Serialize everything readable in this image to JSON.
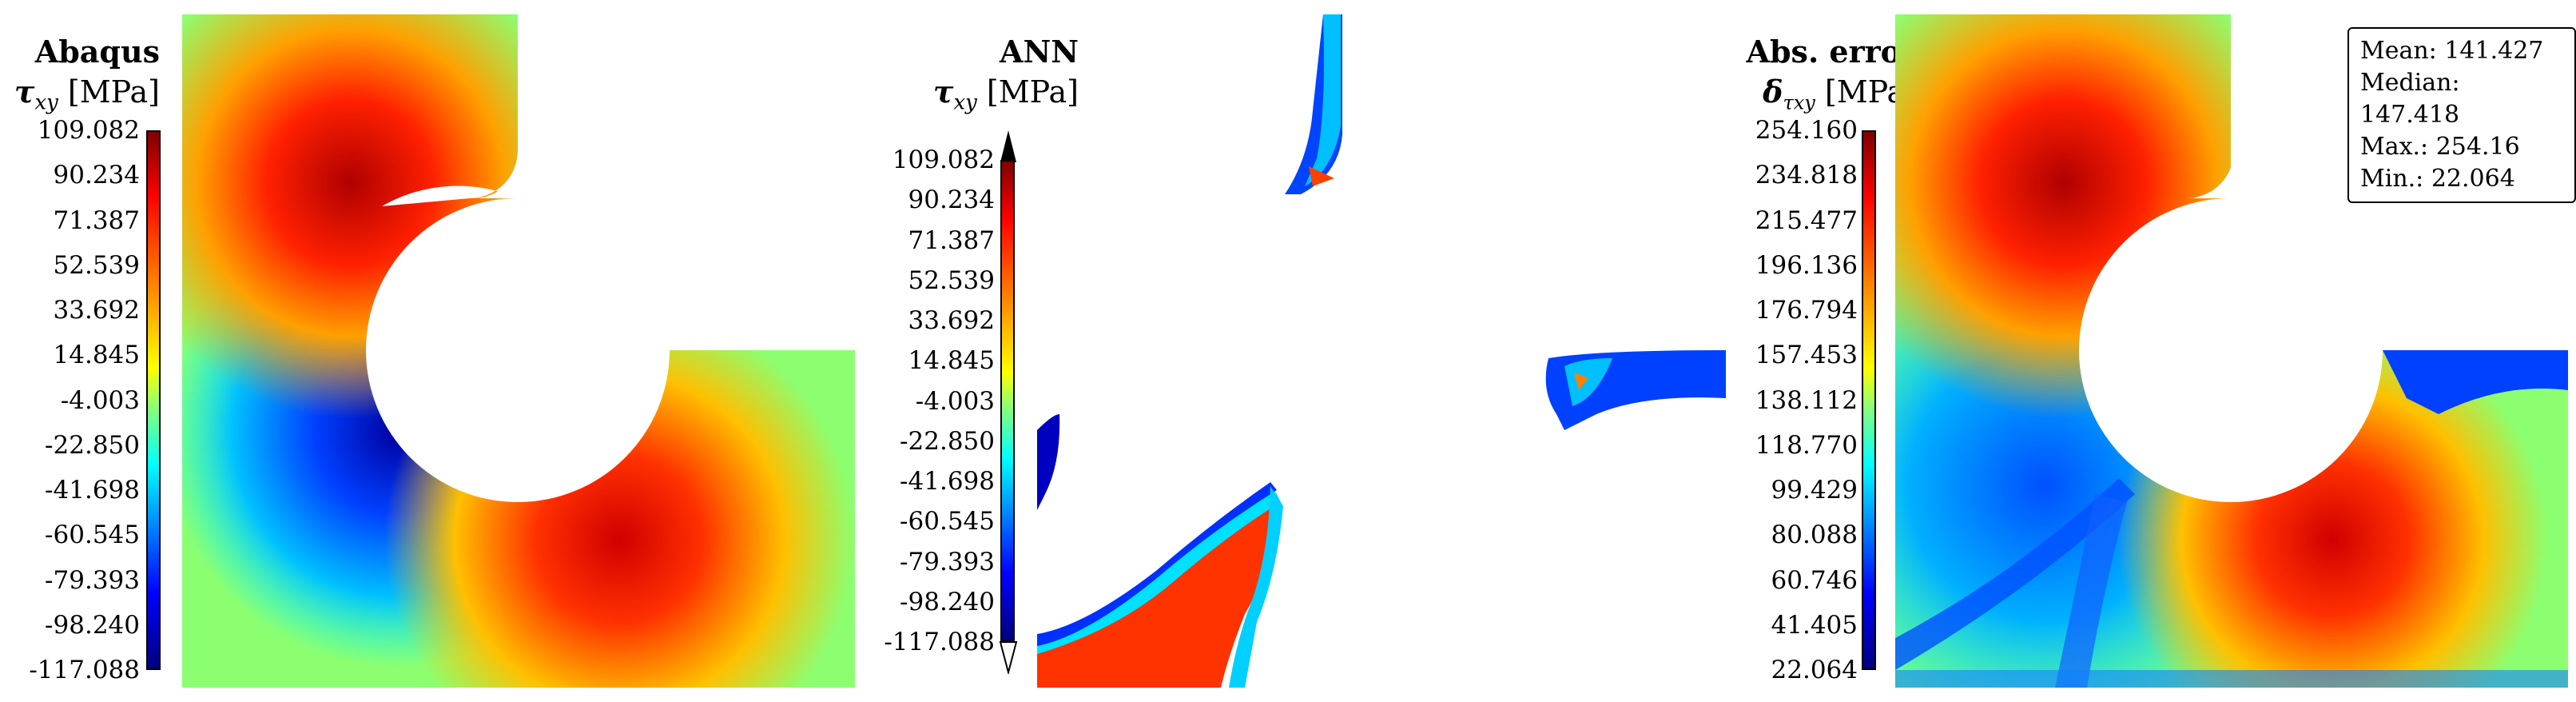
{
  "panels": [
    {
      "title": "Abaqus",
      "quantity": "τ",
      "subscript": "xy",
      "unit": "[MPa]"
    },
    {
      "title": "ANN",
      "quantity": "τ",
      "subscript": "xy",
      "unit": "[MPa]"
    },
    {
      "title": "Abs. error",
      "quantity": "δ",
      "subscript": "τxy",
      "unit": "[MPa]"
    }
  ],
  "colorbar_stress": [
    "109.082",
    "90.234",
    "71.387",
    "52.539",
    "33.692",
    "14.845",
    "-4.003",
    "-22.850",
    "-41.698",
    "-60.545",
    "-79.393",
    "-98.240",
    "-117.088"
  ],
  "colorbar_error": [
    "254.160",
    "234.818",
    "215.477",
    "196.136",
    "176.794",
    "157.453",
    "138.112",
    "118.770",
    "99.429",
    "80.088",
    "60.746",
    "41.405",
    "22.064"
  ],
  "stats": {
    "mean": "Mean: 141.427",
    "median": "Median: 147.418",
    "max": "Max.: 254.16",
    "min": "Min.: 22.064"
  }
}
